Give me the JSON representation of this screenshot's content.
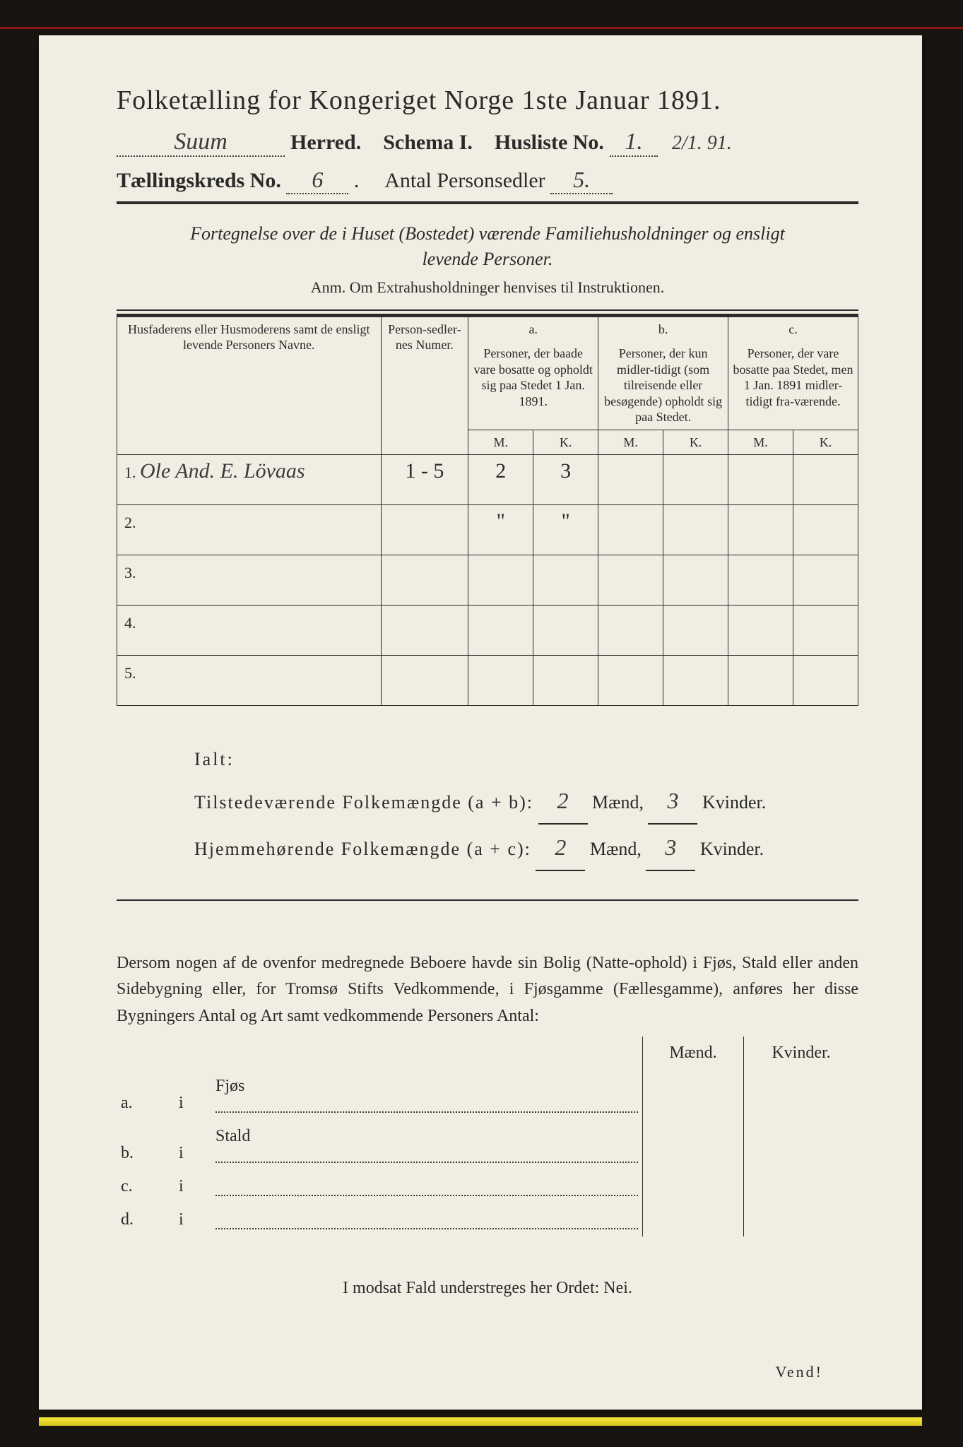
{
  "header": {
    "title": "Folketælling for Kongeriget Norge 1ste Januar 1891.",
    "herred_value": "Suum",
    "herred_label": "Herred.",
    "schema_label": "Schema I.",
    "husliste_label": "Husliste No.",
    "husliste_value": "1.",
    "date_note": "2/1. 91.",
    "kreds_label": "Tællingskreds No.",
    "kreds_value": "6",
    "antal_label": "Antal Personsedler",
    "antal_value": "5."
  },
  "subtitle": {
    "line1": "Fortegnelse over de i Huset (Bostedet) værende Familiehusholdninger og ensligt",
    "line2": "levende Personer.",
    "anm": "Anm.  Om Extrahusholdninger henvises til Instruktionen."
  },
  "table": {
    "col_names": "Husfaderens eller Husmoderens samt de ensligt levende Personers Navne.",
    "col_num": "Person-sedler-nes Numer.",
    "col_a_top": "a.",
    "col_a": "Personer, der baade vare bosatte og opholdt sig paa Stedet 1 Jan. 1891.",
    "col_b_top": "b.",
    "col_b": "Personer, der kun midler-tidigt (som tilreisende eller besøgende) opholdt sig paa Stedet.",
    "col_c_top": "c.",
    "col_c": "Personer, der vare bosatte paa Stedet, men 1 Jan. 1891 midler-tidigt fra-værende.",
    "m": "M.",
    "k": "K.",
    "rows": [
      {
        "n": "1.",
        "name": "Ole And. E. Lövaas",
        "num": "1 - 5",
        "am": "2",
        "ak": "3",
        "bm": "",
        "bk": "",
        "cm": "",
        "ck": ""
      },
      {
        "n": "2.",
        "name": "",
        "num": "",
        "am": "\"",
        "ak": "\"",
        "bm": "",
        "bk": "",
        "cm": "",
        "ck": ""
      },
      {
        "n": "3.",
        "name": "",
        "num": "",
        "am": "",
        "ak": "",
        "bm": "",
        "bk": "",
        "cm": "",
        "ck": ""
      },
      {
        "n": "4.",
        "name": "",
        "num": "",
        "am": "",
        "ak": "",
        "bm": "",
        "bk": "",
        "cm": "",
        "ck": ""
      },
      {
        "n": "5.",
        "name": "",
        "num": "",
        "am": "",
        "ak": "",
        "bm": "",
        "bk": "",
        "cm": "",
        "ck": ""
      }
    ]
  },
  "totals": {
    "ialt": "Ialt:",
    "line1_label": "Tilstedeværende Folkemængde (a + b):",
    "line2_label": "Hjemmehørende Folkemængde (a + c):",
    "maend": "Mænd,",
    "kvinder": "Kvinder.",
    "t_m": "2",
    "t_k": "3",
    "h_m": "2",
    "h_k": "3"
  },
  "paragraph": "Dersom nogen af de ovenfor medregnede Beboere havde sin Bolig (Natte-ophold) i Fjøs, Stald eller anden Sidebygning eller, for Tromsø Stifts Vedkommende, i Fjøsgamme (Fællesgamme), anføres her disse Bygningers Antal og Art samt vedkommende Personers Antal:",
  "lower": {
    "maend": "Mænd.",
    "kvinder": "Kvinder.",
    "rows": [
      {
        "lab": "a.",
        "i": "i",
        "txt": "Fjøs"
      },
      {
        "lab": "b.",
        "i": "i",
        "txt": "Stald"
      },
      {
        "lab": "c.",
        "i": "i",
        "txt": ""
      },
      {
        "lab": "d.",
        "i": "i",
        "txt": ""
      }
    ]
  },
  "nei": "I modsat Fald understreges her Ordet: Nei.",
  "vend": "Vend!"
}
